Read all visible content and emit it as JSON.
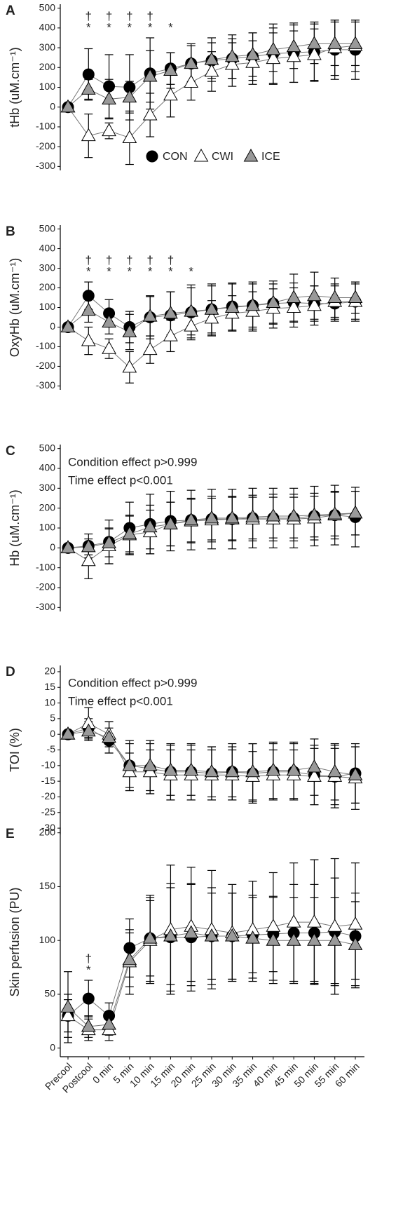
{
  "chart_data": [
    {
      "type": "line",
      "title": "A",
      "ylabel": "tHb (uM.cm⁻¹)",
      "ylim": [
        -320,
        520
      ],
      "yticks": [
        -300,
        -200,
        -100,
        0,
        100,
        200,
        300,
        400,
        500
      ],
      "legend": "lower-center",
      "significance": [
        null,
        [
          "†",
          "*"
        ],
        [
          "†",
          "*"
        ],
        [
          "†",
          "*"
        ],
        [
          "†",
          "*"
        ],
        [
          "*"
        ],
        null,
        null,
        null,
        null,
        null,
        null,
        null,
        null,
        null
      ],
      "series": [
        {
          "name": "CON",
          "color": "#000000",
          "marker": "circle",
          "values": [
            0,
            165,
            105,
            100,
            170,
            195,
            220,
            235,
            245,
            255,
            270,
            275,
            280,
            290,
            290
          ],
          "errors": [
            10,
            130,
            160,
            165,
            180,
            80,
            90,
            90,
            100,
            120,
            150,
            150,
            150,
            150,
            150
          ]
        },
        {
          "name": "CWI",
          "color": "#ffffff",
          "marker": "triangle",
          "values": [
            0,
            -145,
            -120,
            -155,
            -40,
            60,
            125,
            180,
            215,
            225,
            245,
            255,
            265,
            300,
            310
          ],
          "errors": [
            10,
            110,
            40,
            135,
            110,
            110,
            90,
            100,
            110,
            110,
            130,
            130,
            130,
            140,
            130
          ]
        },
        {
          "name": "ICE",
          "color": "#999999",
          "marker": "triangle",
          "values": [
            0,
            90,
            40,
            50,
            155,
            185,
            220,
            240,
            255,
            265,
            290,
            305,
            320,
            320,
            320
          ],
          "errors": [
            10,
            50,
            100,
            80,
            130,
            90,
            100,
            110,
            110,
            110,
            110,
            110,
            100,
            110,
            110
          ]
        }
      ]
    },
    {
      "type": "line",
      "title": "B",
      "ylabel": "OxyHb (uM.cm⁻¹)",
      "ylim": [
        -320,
        520
      ],
      "yticks": [
        -300,
        -200,
        -100,
        0,
        100,
        200,
        300,
        400,
        500
      ],
      "significance": [
        null,
        [
          "†",
          "*"
        ],
        [
          "†",
          "*"
        ],
        [
          "†",
          "*"
        ],
        [
          "†",
          "*"
        ],
        [
          "†",
          "*"
        ],
        [
          "*"
        ],
        null,
        null,
        null,
        null,
        null,
        null,
        null,
        null
      ],
      "series": [
        {
          "color": "#000000",
          "marker": "circle",
          "values": [
            0,
            160,
            70,
            0,
            50,
            60,
            75,
            90,
            105,
            110,
            120,
            125,
            120,
            120,
            130
          ],
          "errors": [
            10,
            70,
            70,
            80,
            110,
            120,
            140,
            130,
            120,
            120,
            100,
            100,
            90,
            90,
            100
          ]
        },
        {
          "color": "#ffffff",
          "marker": "triangle",
          "values": [
            0,
            -70,
            -110,
            -205,
            -115,
            -45,
            5,
            45,
            70,
            80,
            95,
            100,
            110,
            130,
            130
          ],
          "errors": [
            10,
            70,
            50,
            80,
            70,
            80,
            60,
            90,
            90,
            100,
            100,
            100,
            100,
            90,
            90
          ]
        },
        {
          "color": "#999999",
          "marker": "triangle",
          "values": [
            0,
            85,
            25,
            -25,
            55,
            70,
            80,
            90,
            100,
            110,
            125,
            150,
            160,
            150,
            150
          ],
          "errors": [
            10,
            60,
            60,
            90,
            100,
            110,
            120,
            120,
            120,
            110,
            110,
            120,
            120,
            100,
            80
          ]
        }
      ]
    },
    {
      "type": "line",
      "title": "C",
      "ylabel": "Hb (uM.cm⁻¹)",
      "ylim": [
        -320,
        520
      ],
      "yticks": [
        -300,
        -200,
        -100,
        0,
        100,
        200,
        300,
        400,
        500
      ],
      "notes": [
        "Condition effect p>0.999",
        "Time effect p<0.001"
      ],
      "series": [
        {
          "color": "#000000",
          "marker": "circle",
          "values": [
            0,
            10,
            30,
            100,
            120,
            135,
            140,
            145,
            145,
            150,
            150,
            150,
            160,
            165,
            155
          ],
          "errors": [
            10,
            60,
            110,
            130,
            150,
            150,
            150,
            150,
            150,
            150,
            150,
            150,
            150,
            150,
            150
          ]
        },
        {
          "color": "#ffffff",
          "marker": "triangle",
          "values": [
            0,
            -65,
            10,
            65,
            80,
            120,
            135,
            140,
            145,
            145,
            145,
            145,
            150,
            165,
            175
          ],
          "errors": [
            10,
            90,
            90,
            100,
            110,
            110,
            110,
            110,
            110,
            110,
            110,
            110,
            110,
            120,
            110
          ]
        },
        {
          "color": "#999999",
          "marker": "triangle",
          "values": [
            0,
            5,
            25,
            70,
            105,
            120,
            140,
            150,
            150,
            155,
            160,
            160,
            165,
            170,
            175
          ],
          "errors": [
            10,
            40,
            70,
            90,
            110,
            110,
            110,
            110,
            110,
            110,
            110,
            110,
            110,
            110,
            110
          ]
        }
      ]
    },
    {
      "type": "line",
      "title": "D",
      "ylabel": "TOI (%)",
      "ylim": [
        -32,
        22
      ],
      "yticks": [
        -30,
        -25,
        -20,
        -15,
        -10,
        -5,
        0,
        5,
        10,
        15,
        20
      ],
      "notes": [
        "Condition effect p>0.999",
        "Time effect p<0.001"
      ],
      "series": [
        {
          "color": "#000000",
          "marker": "circle",
          "values": [
            0,
            2,
            -2,
            -10,
            -11,
            -12,
            -12,
            -12.5,
            -12,
            -12.5,
            -12,
            -12,
            -13,
            -13.5,
            -12.5
          ],
          "errors": [
            1,
            3,
            4,
            8,
            8,
            9,
            9,
            8.5,
            9,
            9.5,
            9,
            9,
            9.5,
            10,
            9.5
          ]
        },
        {
          "color": "#ffffff",
          "marker": "triangle",
          "values": [
            0,
            3.5,
            0,
            -12,
            -12,
            -13,
            -13,
            -13,
            -13,
            -13.5,
            -13,
            -13,
            -13.5,
            -13.5,
            -14
          ],
          "errors": [
            1,
            5,
            4,
            6,
            7,
            8,
            8,
            8,
            8,
            8,
            8,
            8,
            9,
            9,
            10
          ]
        },
        {
          "color": "#999999",
          "marker": "triangle",
          "values": [
            0,
            1,
            -1,
            -10,
            -10,
            -11.5,
            -11.5,
            -12,
            -12,
            -12,
            -11.5,
            -11.5,
            -10.5,
            -12,
            -13
          ],
          "errors": [
            1,
            3,
            5,
            7,
            8,
            8,
            8,
            8,
            8,
            9,
            9,
            9,
            9,
            9,
            9
          ]
        }
      ]
    },
    {
      "type": "line",
      "title": "E",
      "ylabel": "Skin perfusion (PU)",
      "ylim": [
        -8,
        205
      ],
      "yticks": [
        0,
        50,
        100,
        150,
        200
      ],
      "categories": [
        "Precool",
        "Postcool",
        "0 min",
        "5 min",
        "10 min",
        "15 min",
        "20 min",
        "25 min",
        "30 min",
        "35 min",
        "40 min",
        "45 min",
        "50 min",
        "55 min",
        "60 min"
      ],
      "significance": [
        null,
        [
          "†",
          "*"
        ],
        null,
        null,
        null,
        null,
        null,
        null,
        null,
        null,
        null,
        null,
        null,
        null,
        null
      ],
      "series": [
        {
          "color": "#000000",
          "marker": "circle",
          "values": [
            30,
            46,
            30,
            93,
            102,
            103,
            103,
            104,
            104,
            105,
            106,
            107,
            107,
            108,
            104
          ],
          "errors": [
            20,
            17,
            12,
            27,
            35,
            50,
            50,
            45,
            40,
            35,
            35,
            45,
            45,
            50,
            40
          ]
        },
        {
          "color": "#ffffff",
          "marker": "triangle",
          "values": [
            30,
            17,
            17,
            80,
            100,
            110,
            113,
            110,
            107,
            110,
            113,
            117,
            117,
            113,
            115
          ],
          "errors": [
            15,
            10,
            10,
            30,
            40,
            60,
            55,
            55,
            45,
            45,
            50,
            55,
            58,
            63,
            57
          ]
        },
        {
          "color": "#999999",
          "marker": "triangle",
          "values": [
            38,
            20,
            22,
            82,
            102,
            104,
            107,
            104,
            104,
            102,
            100,
            100,
            100,
            100,
            96
          ],
          "errors": [
            33,
            10,
            10,
            25,
            40,
            45,
            45,
            40,
            40,
            40,
            40,
            40,
            40,
            40,
            40
          ]
        }
      ]
    }
  ]
}
